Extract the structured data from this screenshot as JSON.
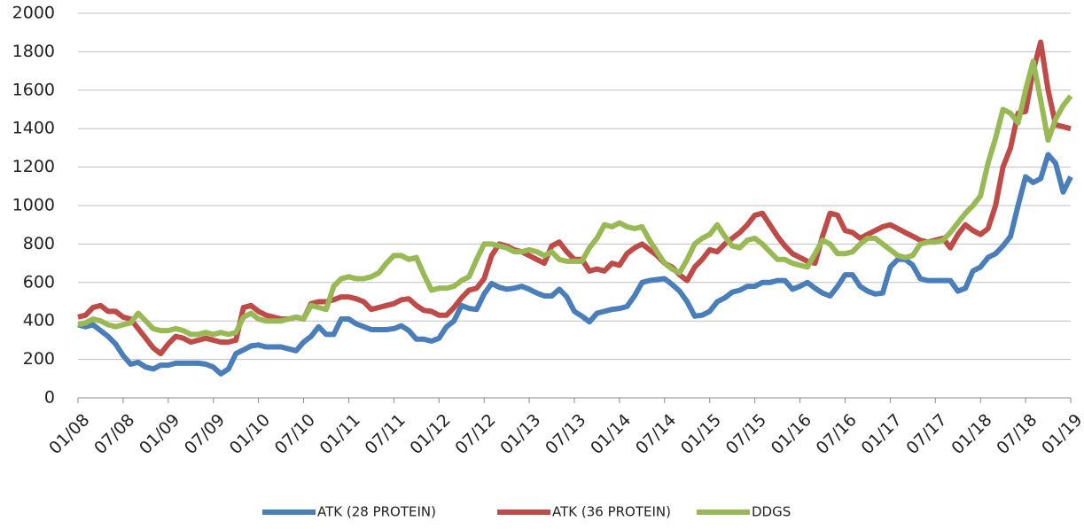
{
  "chart_data": {
    "type": "line",
    "categories": [
      "01/08",
      null,
      null,
      null,
      null,
      null,
      "07/08",
      null,
      null,
      null,
      null,
      null,
      "01/09",
      null,
      null,
      null,
      null,
      null,
      "07/09",
      null,
      null,
      null,
      null,
      null,
      "01/10",
      null,
      null,
      null,
      null,
      null,
      "07/10",
      null,
      null,
      null,
      null,
      null,
      "01/11",
      null,
      null,
      null,
      null,
      null,
      "07/11",
      null,
      null,
      null,
      null,
      null,
      "01/12",
      null,
      null,
      null,
      null,
      null,
      "07/12",
      null,
      null,
      null,
      null,
      null,
      "01/13",
      null,
      null,
      null,
      null,
      null,
      "07/13",
      null,
      null,
      null,
      null,
      null,
      "01/14",
      null,
      null,
      null,
      null,
      null,
      "07/14",
      null,
      null,
      null,
      null,
      null,
      "01/15",
      null,
      null,
      null,
      null,
      null,
      "07/15",
      null,
      null,
      null,
      null,
      null,
      "01/16",
      null,
      null,
      null,
      null,
      null,
      "07/16",
      null,
      null,
      null,
      null,
      null,
      "01/17",
      null,
      null,
      null,
      null,
      null,
      "07/17",
      null,
      null,
      null,
      null,
      null,
      "01/18",
      null,
      null,
      null,
      null,
      null,
      "07/18",
      null,
      null,
      null,
      null,
      null,
      "01/19"
    ],
    "series": [
      {
        "name": "ATK (28 PROTEIN)",
        "color": "#4a7ebb",
        "values": [
          380,
          370,
          380,
          350,
          320,
          280,
          220,
          175,
          185,
          160,
          150,
          170,
          170,
          180,
          180,
          180,
          180,
          175,
          160,
          125,
          150,
          230,
          250,
          270,
          275,
          265,
          265,
          265,
          255,
          245,
          290,
          320,
          370,
          330,
          330,
          410,
          410,
          385,
          370,
          355,
          355,
          355,
          360,
          375,
          350,
          305,
          305,
          295,
          310,
          370,
          400,
          480,
          465,
          460,
          540,
          595,
          575,
          565,
          570,
          580,
          565,
          545,
          530,
          530,
          565,
          525,
          450,
          425,
          395,
          440,
          450,
          460,
          465,
          475,
          530,
          600,
          610,
          615,
          620,
          590,
          555,
          500,
          425,
          430,
          450,
          500,
          520,
          550,
          560,
          580,
          580,
          600,
          600,
          610,
          610,
          565,
          580,
          600,
          570,
          545,
          530,
          580,
          640,
          640,
          580,
          555,
          540,
          545,
          680,
          720,
          720,
          690,
          620,
          610,
          610,
          610,
          610,
          555,
          570,
          660,
          680,
          730,
          750,
          790,
          840,
          1000,
          1150,
          1120,
          1140,
          1265,
          1220,
          1070,
          1150
        ]
      },
      {
        "name": "ATK (36 PROTEIN)",
        "color": "#be4b48",
        "values": [
          420,
          430,
          470,
          480,
          450,
          450,
          420,
          410,
          360,
          310,
          260,
          230,
          280,
          320,
          310,
          290,
          300,
          310,
          300,
          290,
          290,
          300,
          470,
          480,
          450,
          430,
          420,
          410,
          410,
          420,
          410,
          490,
          500,
          500,
          510,
          525,
          525,
          515,
          500,
          460,
          470,
          480,
          490,
          510,
          515,
          480,
          455,
          450,
          430,
          430,
          470,
          520,
          560,
          570,
          620,
          740,
          800,
          790,
          770,
          760,
          740,
          720,
          700,
          790,
          810,
          760,
          720,
          720,
          660,
          670,
          660,
          700,
          690,
          750,
          780,
          800,
          770,
          740,
          700,
          680,
          640,
          610,
          680,
          720,
          770,
          760,
          800,
          830,
          860,
          900,
          950,
          960,
          900,
          840,
          790,
          750,
          730,
          710,
          700,
          840,
          960,
          950,
          870,
          860,
          830,
          850,
          870,
          890,
          900,
          880,
          860,
          840,
          820,
          810,
          820,
          830,
          780,
          850,
          900,
          870,
          850,
          880,
          1000,
          1200,
          1300,
          1480,
          1490,
          1700,
          1850,
          1600,
          1420,
          1410,
          1400
        ]
      },
      {
        "name": "DDGS",
        "color": "#98b954",
        "values": [
          380,
          390,
          410,
          400,
          380,
          370,
          380,
          390,
          440,
          400,
          360,
          350,
          350,
          360,
          350,
          330,
          330,
          340,
          330,
          340,
          330,
          340,
          420,
          440,
          410,
          400,
          400,
          400,
          410,
          420,
          410,
          480,
          470,
          460,
          580,
          620,
          630,
          620,
          620,
          630,
          650,
          700,
          740,
          740,
          720,
          730,
          640,
          560,
          570,
          570,
          580,
          610,
          630,
          720,
          800,
          800,
          790,
          780,
          760,
          760,
          770,
          760,
          740,
          760,
          720,
          710,
          710,
          710,
          780,
          830,
          900,
          890,
          910,
          890,
          880,
          890,
          820,
          760,
          700,
          670,
          650,
          720,
          800,
          830,
          850,
          900,
          840,
          790,
          780,
          820,
          830,
          800,
          760,
          720,
          720,
          700,
          690,
          680,
          750,
          820,
          800,
          750,
          750,
          760,
          800,
          830,
          830,
          800,
          770,
          740,
          730,
          740,
          800,
          810,
          810,
          820,
          860,
          910,
          960,
          1000,
          1050,
          1220,
          1350,
          1500,
          1480,
          1430,
          1600,
          1750,
          1550,
          1340,
          1450,
          1520,
          1570
        ]
      }
    ],
    "ylim": [
      0,
      2000
    ],
    "yticks": [
      0,
      200,
      400,
      600,
      800,
      1000,
      1200,
      1400,
      1600,
      1800,
      2000
    ],
    "grid": true,
    "legend": "bottom"
  }
}
